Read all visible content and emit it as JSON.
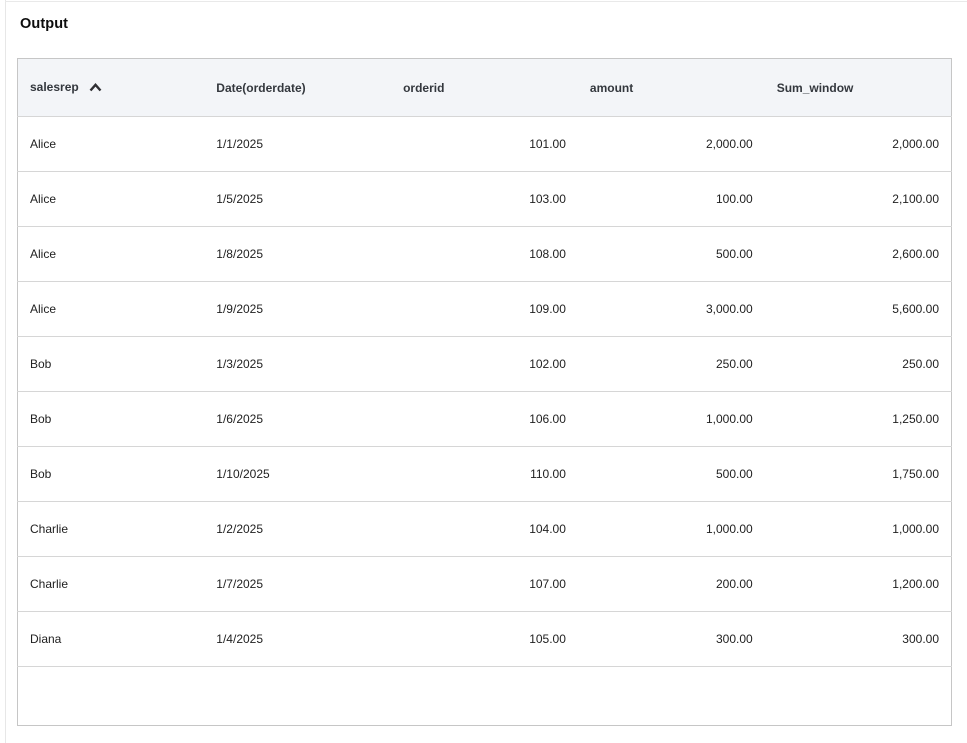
{
  "panel": {
    "title": "Output"
  },
  "table": {
    "columns": [
      {
        "label": "salesrep",
        "sorted": "ascending",
        "align": "left"
      },
      {
        "label": "Date(orderdate)",
        "sorted": "none",
        "align": "left"
      },
      {
        "label": "orderid",
        "sorted": "none",
        "align": "right"
      },
      {
        "label": "amount",
        "sorted": "none",
        "align": "right"
      },
      {
        "label": "Sum_window",
        "sorted": "none",
        "align": "right"
      }
    ],
    "rows": [
      [
        "Alice",
        "1/1/2025",
        "101.00",
        "2,000.00",
        "2,000.00"
      ],
      [
        "Alice",
        "1/5/2025",
        "103.00",
        "100.00",
        "2,100.00"
      ],
      [
        "Alice",
        "1/8/2025",
        "108.00",
        "500.00",
        "2,600.00"
      ],
      [
        "Alice",
        "1/9/2025",
        "109.00",
        "3,000.00",
        "5,600.00"
      ],
      [
        "Bob",
        "1/3/2025",
        "102.00",
        "250.00",
        "250.00"
      ],
      [
        "Bob",
        "1/6/2025",
        "106.00",
        "1,000.00",
        "1,250.00"
      ],
      [
        "Bob",
        "1/10/2025",
        "110.00",
        "500.00",
        "1,750.00"
      ],
      [
        "Charlie",
        "1/2/2025",
        "104.00",
        "1,000.00",
        "1,000.00"
      ],
      [
        "Charlie",
        "1/7/2025",
        "107.00",
        "200.00",
        "1,200.00"
      ],
      [
        "Diana",
        "1/4/2025",
        "105.00",
        "300.00",
        "300.00"
      ]
    ]
  },
  "icons": {
    "sort_ascending": "chevron-up"
  },
  "colors": {
    "header_background": "#f3f5f8",
    "table_border": "#c6c6c6",
    "row_separator": "#d6d6d6",
    "text": "#212121",
    "header_text": "#33373d"
  }
}
